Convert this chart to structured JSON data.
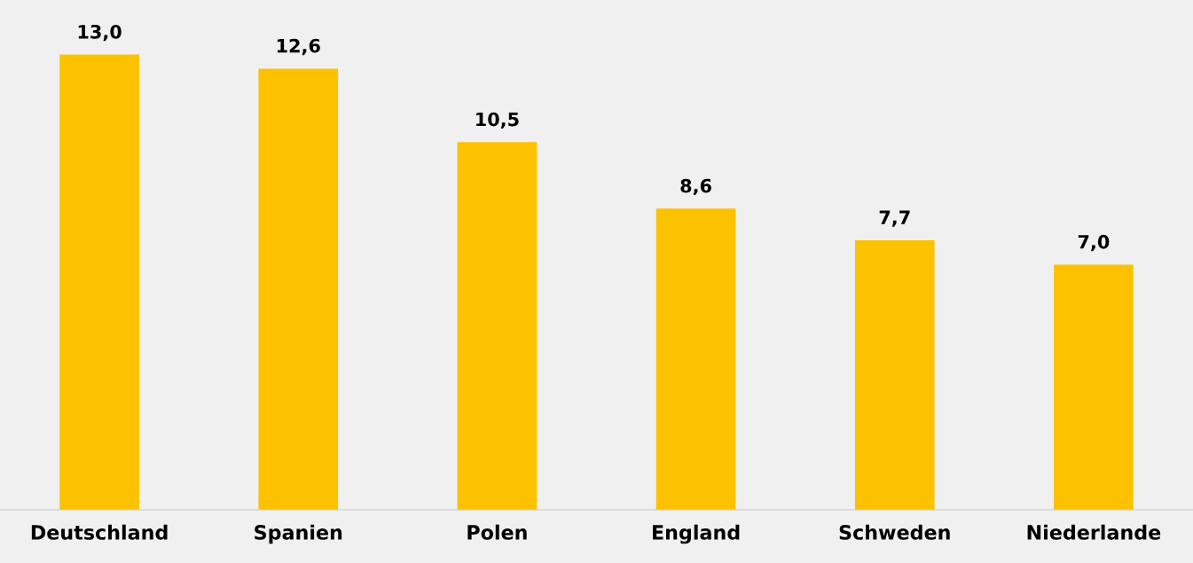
{
  "chart_data": {
    "type": "bar",
    "categories": [
      "Deutschland",
      "Spanien",
      "Polen",
      "England",
      "Schweden",
      "Niederlande"
    ],
    "values": [
      13.0,
      12.6,
      10.5,
      8.6,
      7.7,
      7.0
    ],
    "value_labels": [
      "13,0",
      "12,6",
      "10,5",
      "8,6",
      "7,7",
      "7,0"
    ],
    "color": "#fcc200",
    "grid": false,
    "legend": false
  }
}
